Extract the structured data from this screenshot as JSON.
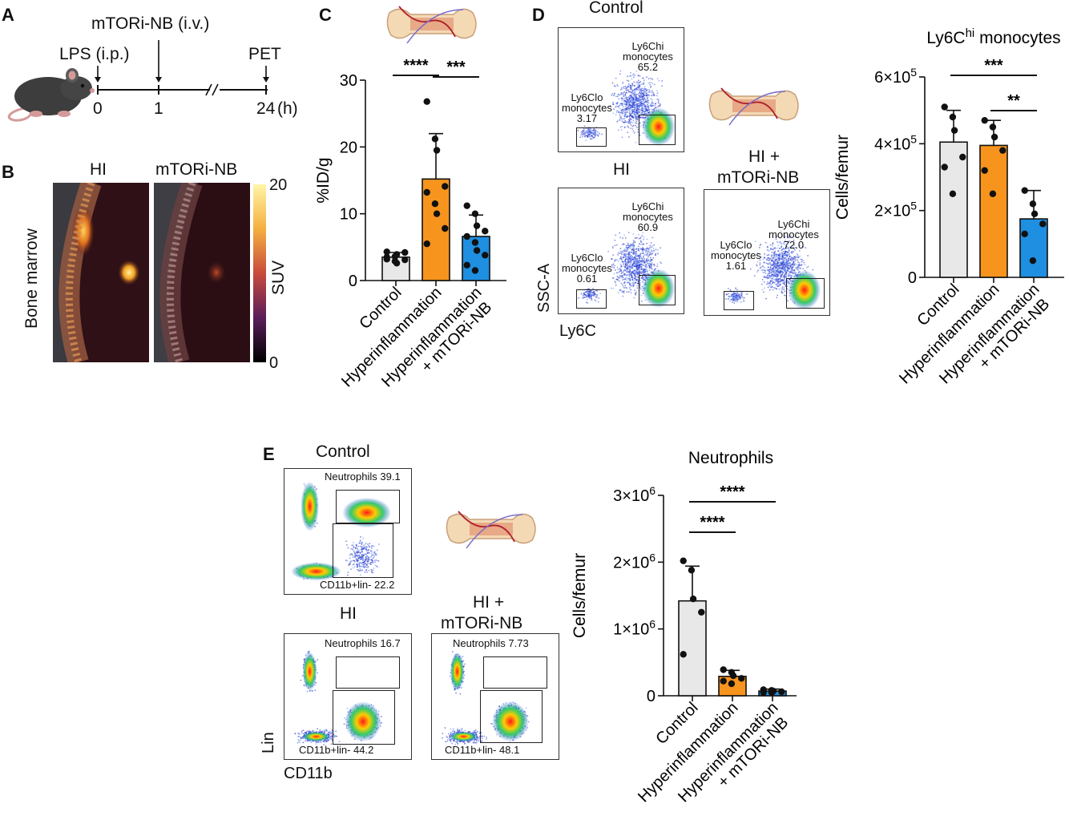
{
  "panels": {
    "a": "A",
    "b": "B",
    "c": "C",
    "d": "D",
    "e": "E"
  },
  "panel_a": {
    "lps": "LPS (i.p.)",
    "mtori": "mTORi-NB (i.v.)",
    "pet": "PET",
    "t0": "0",
    "t1": "1",
    "t24": "24",
    "unit": "(h)"
  },
  "panel_b": {
    "title_hi": "HI",
    "title_mtori": "mTORi-NB",
    "side_label": "Bone marrow",
    "scale_label": "SUV",
    "scale_max": "20",
    "scale_min": "0"
  },
  "panel_d": {
    "control": "Control",
    "hi": "HI",
    "hi_mtori_1": "HI +",
    "hi_mtori_2": "mTORi-NB",
    "ssc": "SSC-A",
    "ly6c": "Ly6C",
    "plots": [
      {
        "lo_name": "Ly6Clo",
        "lo_sub": "monocytes",
        "lo_val": "3.17",
        "hi_name": "Ly6Chi",
        "hi_sub": "monocytes",
        "hi_val": "65.2"
      },
      {
        "lo_name": "Ly6Clo",
        "lo_sub": "monocytes",
        "lo_val": "0.61",
        "hi_name": "Ly6Chi",
        "hi_sub": "monocytes",
        "hi_val": "60.9"
      },
      {
        "lo_name": "Ly6Clo",
        "lo_sub": "monocytes",
        "lo_val": "1.61",
        "hi_name": "Ly6Chi",
        "hi_sub": "monocytes",
        "hi_val": "72.0"
      }
    ]
  },
  "panel_e": {
    "control": "Control",
    "hi": "HI",
    "hi_mtori_1": "HI +",
    "hi_mtori_2": "mTORi-NB",
    "lin": "Lin",
    "cd11b": "CD11b",
    "plots": [
      {
        "neut": "Neutrophils 39.1",
        "cd": "CD11b+lin- 22.2"
      },
      {
        "neut": "Neutrophils 16.7",
        "cd": "CD11b+lin- 44.2"
      },
      {
        "neut": "Neutrophils 7.73",
        "cd": "CD11b+lin- 48.1"
      }
    ]
  },
  "colors": {
    "control": "#e8e8e8",
    "hi": "#f7941d",
    "mtori": "#1e8fe1"
  },
  "chart_data": [
    {
      "id": "C",
      "type": "bar",
      "title": "",
      "ylabel": "%ID/g",
      "ylim": [
        0,
        30
      ],
      "yticks": [
        "0",
        "10",
        "20",
        "30"
      ],
      "categories": [
        "Control",
        "Hyperinflammation",
        "Hyperinflammation + mTORi-NB"
      ],
      "values": [
        3.5,
        15.2,
        6.6
      ],
      "errors": [
        0.7,
        6.8,
        3.2
      ],
      "points": [
        [
          3.2,
          2.9,
          3.9,
          4.2,
          3.5,
          3.6,
          2.6,
          3.1,
          4.3
        ],
        [
          26.8,
          21.2,
          19.5,
          14.1,
          13.2,
          11.5,
          10.0,
          7.8,
          5.5
        ],
        [
          11.2,
          10.0,
          8.2,
          7.4,
          6.6,
          5.7,
          4.5,
          3.8,
          2.3,
          1.5
        ]
      ],
      "significance": [
        {
          "from": 0,
          "to": 1,
          "label": "****"
        },
        {
          "from": 1,
          "to": 2,
          "label": "***"
        }
      ]
    },
    {
      "id": "D",
      "type": "bar",
      "title_main": "Ly6C",
      "title_sup": "hi",
      "title_rest": " monocytes",
      "ylabel": "Cells/femur",
      "ylim": [
        0,
        6
      ],
      "ytick_base": "×10",
      "yticks": [
        {
          "value": 0,
          "text": "0",
          "exp": ""
        },
        {
          "value": 2,
          "text": "2",
          "exp": "5"
        },
        {
          "value": 4,
          "text": "4",
          "exp": "5"
        },
        {
          "value": 6,
          "text": "6",
          "exp": "5"
        }
      ],
      "categories": [
        "Control",
        "Hyperinflammation",
        "Hyperinflammation + mTORi-NB"
      ],
      "values": [
        4.05,
        3.95,
        1.75
      ],
      "errors": [
        0.95,
        0.75,
        0.85
      ],
      "points": [
        [
          5.1,
          4.8,
          4.4,
          3.6,
          3.3,
          2.5
        ],
        [
          4.7,
          4.5,
          4.2,
          3.8,
          3.2,
          2.5
        ],
        [
          2.6,
          2.2,
          1.9,
          1.6,
          1.3,
          0.5
        ]
      ],
      "significance": [
        {
          "from": 0,
          "to": 2,
          "label": "***"
        },
        {
          "from": 1,
          "to": 2,
          "label": "**"
        }
      ]
    },
    {
      "id": "E",
      "type": "bar",
      "title": "Neutrophils",
      "ylabel": "Cells/femur",
      "ylim": [
        0,
        3
      ],
      "ytick_base": "×10",
      "yticks": [
        {
          "value": 0,
          "text": "0",
          "exp": ""
        },
        {
          "value": 1,
          "text": "1",
          "exp": "6"
        },
        {
          "value": 2,
          "text": "2",
          "exp": "6"
        },
        {
          "value": 3,
          "text": "3",
          "exp": "6"
        }
      ],
      "categories": [
        "Control",
        "Hyperinflammation",
        "Hyperinflammation + mTORi-NB"
      ],
      "values": [
        1.42,
        0.29,
        0.07
      ],
      "errors": [
        0.52,
        0.09,
        0.03
      ],
      "points": [
        [
          2.02,
          1.88,
          1.45,
          1.25,
          0.62
        ],
        [
          0.39,
          0.35,
          0.3,
          0.26,
          0.22,
          0.18
        ],
        [
          0.09,
          0.08,
          0.07,
          0.06,
          0.05,
          0.05
        ]
      ],
      "significance": [
        {
          "from": 0,
          "to": 1,
          "label": "****"
        },
        {
          "from": 0,
          "to": 2,
          "label": "****"
        }
      ]
    }
  ]
}
